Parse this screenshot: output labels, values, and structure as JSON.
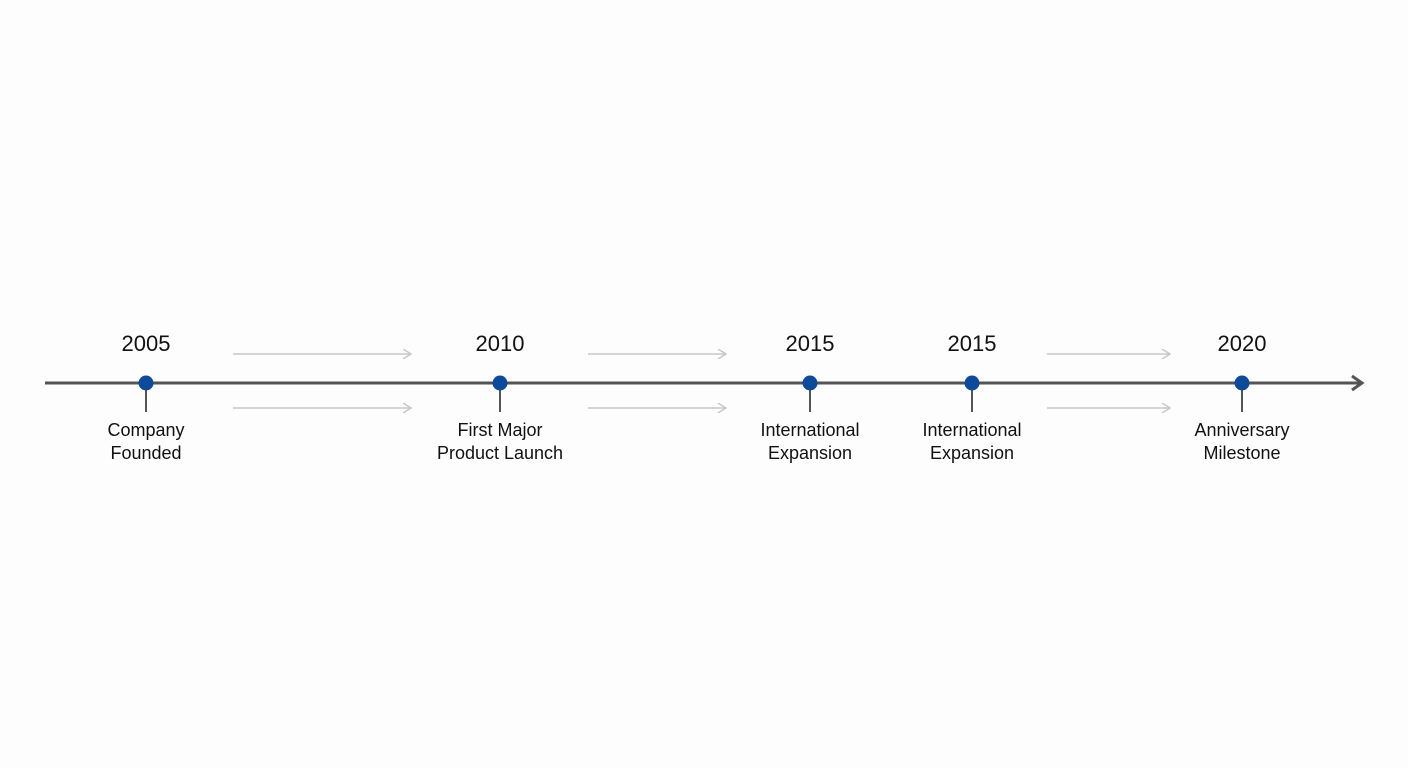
{
  "timeline": {
    "events": [
      {
        "year": "2005",
        "label": [
          "Company",
          "Founded"
        ]
      },
      {
        "year": "2010",
        "label": [
          "First Major",
          "Product Launch"
        ]
      },
      {
        "year": "2015",
        "label": [
          "International",
          "Expansion"
        ]
      },
      {
        "year": "2015",
        "label": [
          "International",
          "Expansion"
        ]
      },
      {
        "year": "2020",
        "label": [
          "Anniversary",
          "Milestone"
        ]
      }
    ]
  }
}
